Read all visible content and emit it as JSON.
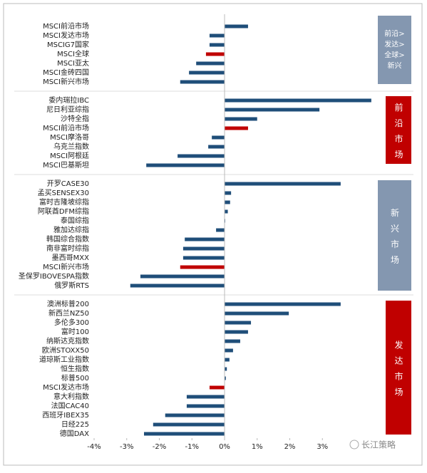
{
  "chart_data": {
    "type": "bar",
    "orientation": "horizontal",
    "color": "#1f4e79",
    "highlight_color": "#c00000",
    "xlim": [
      -4,
      4.6
    ],
    "xticks": [
      {
        "value": -4,
        "label": "-4%"
      },
      {
        "value": -3,
        "label": "-3%"
      },
      {
        "value": -2,
        "label": "-2%"
      },
      {
        "value": -1,
        "label": "-1%"
      },
      {
        "value": 0,
        "label": "0%"
      },
      {
        "value": 1,
        "label": "1%"
      },
      {
        "value": 2,
        "label": "2%"
      },
      {
        "value": 3,
        "label": "3%"
      }
    ],
    "groups": [
      {
        "label": [
          "前沿>",
          "发达>",
          "全球>",
          "新兴"
        ],
        "label_color": "#8497b0",
        "highlight": 3,
        "categories": [
          "MSCI前沿市场",
          "MSCI发达市场",
          "MSCIG7国家",
          "MSCI全球",
          "MSCI亚太",
          "MSCI金砖四国",
          "MSCI新兴市场"
        ],
        "values": [
          0.72,
          -0.46,
          -0.46,
          -0.57,
          -0.87,
          -1.09,
          -1.36
        ]
      },
      {
        "label": "前沿市场",
        "label_color": "#c00000",
        "highlight": 3,
        "categories": [
          "委内瑞拉IBC",
          "尼日利亚综指",
          "沙特全指",
          "MSCI前沿市场",
          "MSCI摩洛哥",
          "乌克兰指数",
          "MSCI阿根廷",
          "MSCI巴基斯坦"
        ],
        "values": [
          4.5,
          2.91,
          1.0,
          0.72,
          -0.39,
          -0.5,
          -1.44,
          -2.4
        ]
      },
      {
        "label": "新兴市场",
        "label_color": "#8497b0",
        "highlight": 9,
        "categories": [
          "开罗CASE30",
          "孟买SENSEX30",
          "富时吉隆坡综指",
          "阿联酋DFM综指",
          "泰国综指",
          "雅加达综指",
          "韩国综合指数",
          "南非富时综指",
          "墨西哥MXX",
          "MSCI新兴市场",
          "圣保罗IBOVESPA指数",
          "俄罗斯RTS"
        ],
        "values": [
          3.56,
          0.2,
          0.17,
          0.1,
          0.02,
          -0.26,
          -1.22,
          -1.27,
          -1.27,
          -1.36,
          -2.58,
          -2.89
        ]
      },
      {
        "label": "发达市场",
        "label_color": "#c00000",
        "highlight": 9,
        "categories": [
          "澳洲标普200",
          "新西兰NZ50",
          "多伦多300",
          "富时100",
          "纳斯达克指数",
          "欧洲STOXX50",
          "道琼斯工业指数",
          "恒生指数",
          "标普500",
          "MSCI发达市场",
          "意大利指数",
          "法国CAC40",
          "西班牙IBEX35",
          "日经225",
          "德国DAX"
        ],
        "values": [
          3.56,
          1.97,
          0.81,
          0.72,
          0.48,
          0.26,
          0.15,
          0.07,
          0.04,
          -0.46,
          -1.16,
          -1.16,
          -1.82,
          -2.19,
          -2.47
        ]
      }
    ],
    "watermark": "长江策略"
  }
}
